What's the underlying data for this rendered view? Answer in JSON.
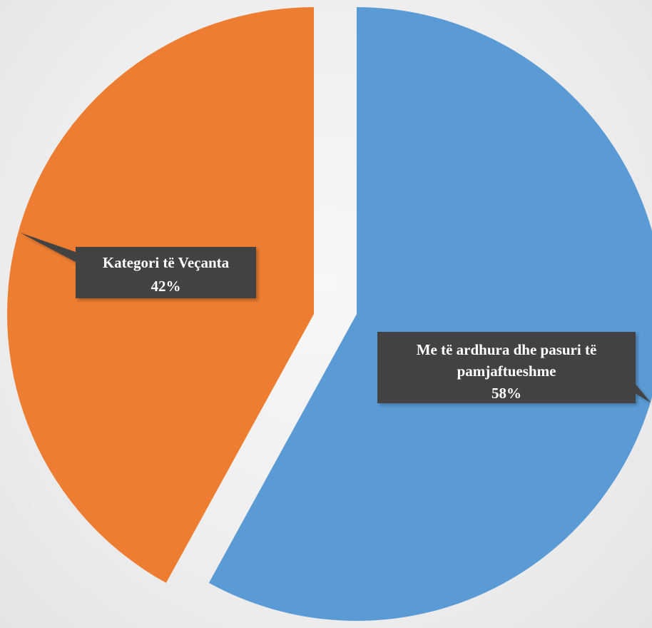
{
  "chart_data": {
    "type": "pie",
    "title": "",
    "slices": [
      {
        "label": "Me të ardhura dhe pasuri të pamjaftueshme",
        "label_lines": [
          "Me të ardhura dhe pasuri të",
          "pamjaftueshme"
        ],
        "percent_text": "58%",
        "value": 58,
        "color": "#5b9bd5",
        "exploded": true
      },
      {
        "label": "Kategori të Veçanta",
        "label_lines": [
          "Kategori të Veçanta"
        ],
        "percent_text": "42%",
        "value": 42,
        "color": "#ed7d31",
        "exploded": true
      }
    ],
    "start_angle_deg": 0,
    "direction": "clockwise",
    "legend": "none",
    "data_label_style": "callout"
  },
  "colors": {
    "callout_fill": "#404040",
    "callout_text": "#ffffff"
  }
}
